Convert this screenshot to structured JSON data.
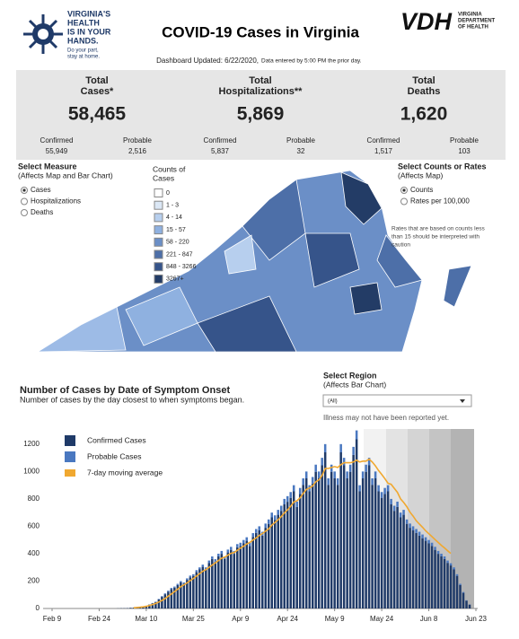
{
  "header": {
    "logo_lines": [
      "VIRGINIA'S",
      "HEALTH",
      "IS IN YOUR",
      "HANDS."
    ],
    "logo_sub": [
      "Do your part,",
      "stay at home."
    ],
    "title": "COVID-19 Cases in Virginia",
    "updated": "Dashboard Updated: 6/22/2020,",
    "updated_note": "Data entered by 5:00 PM the prior day.",
    "vdh": "VDH",
    "vdh_sub": [
      "VIRGINIA",
      "DEPARTMENT",
      "OF HEALTH"
    ]
  },
  "summary": [
    {
      "label": [
        "Total",
        "Cases*"
      ],
      "value": "58,465",
      "breakdown": [
        {
          "label": "Confirmed",
          "value": "55,949"
        },
        {
          "label": "Probable",
          "value": "2,516"
        }
      ]
    },
    {
      "label": [
        "Total",
        "Hospitalizations**"
      ],
      "value": "5,869",
      "breakdown": [
        {
          "label": "Confirmed",
          "value": "5,837"
        },
        {
          "label": "Probable",
          "value": "32"
        }
      ]
    },
    {
      "label": [
        "Total",
        "Deaths"
      ],
      "value": "1,620",
      "breakdown": [
        {
          "label": "Confirmed",
          "value": "1,517"
        },
        {
          "label": "Probable",
          "value": "103"
        }
      ]
    }
  ],
  "measure": {
    "title": "Select Measure",
    "subtitle": "(Affects Map and Bar Chart)",
    "options": [
      "Cases",
      "Hospitalizations",
      "Deaths"
    ]
  },
  "map_legend": {
    "title": [
      "Counts of",
      "Cases"
    ],
    "items": [
      "0",
      "1 - 3",
      "4 - 14",
      "15 - 57",
      "58 - 220",
      "221 - 847",
      "848 - 3266",
      "3267+"
    ]
  },
  "rates": {
    "title": "Select Counts or Rates",
    "subtitle": "(Affects Map)",
    "options": [
      "Counts",
      "Rates per 100,000"
    ],
    "note": [
      "Rates that are based on counts less",
      "than 15 should be interpreted with",
      "caution"
    ]
  },
  "chart_section": {
    "title": "Number of Cases by Date of Symptom Onset",
    "subtitle": "Number of cases by the day closest to when symptoms began.",
    "region_title": "Select Region",
    "region_subtitle": "(Affects Bar Chart)",
    "region_value": "(All)",
    "note": "Illness may not have been reported yet."
  },
  "chart_data": {
    "type": "bar",
    "categories": [
      "Feb 9",
      null,
      null,
      null,
      null,
      null,
      null,
      null,
      null,
      null,
      null,
      null,
      null,
      null,
      null,
      "Feb 24",
      null,
      null,
      null,
      null,
      null,
      null,
      null,
      null,
      null,
      null,
      null,
      null,
      null,
      null,
      "Mar 10",
      null,
      null,
      null,
      null,
      null,
      null,
      null,
      null,
      null,
      null,
      null,
      null,
      null,
      null,
      "Mar 25",
      null,
      null,
      null,
      null,
      null,
      null,
      null,
      null,
      null,
      null,
      null,
      null,
      null,
      null,
      "Apr 9",
      null,
      null,
      null,
      null,
      null,
      null,
      null,
      null,
      null,
      null,
      null,
      null,
      null,
      null,
      "Apr 24",
      null,
      null,
      null,
      null,
      null,
      null,
      null,
      null,
      null,
      null,
      null,
      null,
      null,
      null,
      "May 9",
      null,
      null,
      null,
      null,
      null,
      null,
      null,
      null,
      null,
      null,
      null,
      null,
      null,
      null,
      "May 24",
      null,
      null,
      null,
      null,
      null,
      null,
      null,
      null,
      null,
      null,
      null,
      null,
      null,
      null,
      "Jun 8",
      null,
      null,
      null,
      null,
      null,
      null,
      null,
      null,
      null,
      null,
      null,
      null,
      null,
      null,
      "Jun 23"
    ],
    "series": [
      {
        "name": "Confirmed Cases",
        "color": "#1f3a68",
        "values": [
          0,
          0,
          0,
          0,
          0,
          0,
          0,
          0,
          0,
          0,
          0,
          0,
          0,
          0,
          0,
          0,
          0,
          0,
          0,
          0,
          0,
          1,
          2,
          2,
          3,
          5,
          6,
          8,
          10,
          12,
          19,
          28,
          38,
          47,
          66,
          85,
          104,
          123,
          142,
          152,
          171,
          190,
          180,
          209,
          228,
          238,
          266,
          285,
          304,
          285,
          333,
          361,
          342,
          380,
          399,
          361,
          409,
          428,
          399,
          447,
          456,
          475,
          494,
          456,
          523,
          551,
          570,
          532,
          589,
          618,
          665,
          646,
          684,
          713,
          760,
          779,
          808,
          855,
          741,
          836,
          903,
          950,
          855,
          912,
          998,
          950,
          1045,
          1140,
          903,
          998,
          950,
          903,
          1140,
          1045,
          950,
          998,
          1121,
          1235,
          855,
          950,
          998,
          1045,
          903,
          950,
          855,
          808,
          836,
          855,
          760,
          713,
          741,
          665,
          684,
          618,
          589,
          570,
          551,
          532,
          513,
          494,
          475,
          456,
          428,
          399,
          380,
          361,
          333,
          314,
          285,
          238,
          171,
          114,
          57,
          28,
          0,
          0
        ]
      },
      {
        "name": "Probable Cases",
        "color": "#4a78c0",
        "values": [
          0,
          0,
          0,
          0,
          0,
          0,
          0,
          0,
          0,
          0,
          0,
          0,
          0,
          0,
          0,
          0,
          0,
          0,
          0,
          0,
          0,
          0,
          0,
          0,
          0,
          0,
          0,
          0,
          0,
          0,
          1,
          2,
          2,
          3,
          4,
          5,
          6,
          7,
          8,
          8,
          9,
          10,
          10,
          11,
          12,
          12,
          14,
          15,
          16,
          15,
          17,
          19,
          18,
          20,
          21,
          19,
          21,
          22,
          21,
          23,
          24,
          25,
          26,
          24,
          27,
          29,
          30,
          28,
          31,
          32,
          35,
          34,
          36,
          37,
          40,
          41,
          42,
          45,
          39,
          44,
          47,
          50,
          45,
          48,
          52,
          50,
          55,
          60,
          47,
          52,
          50,
          47,
          60,
          55,
          50,
          52,
          59,
          65,
          45,
          50,
          52,
          55,
          47,
          50,
          45,
          42,
          44,
          45,
          40,
          37,
          39,
          35,
          36,
          32,
          31,
          30,
          29,
          28,
          27,
          26,
          25,
          24,
          22,
          21,
          20,
          19,
          17,
          16,
          15,
          12,
          9,
          6,
          3,
          2,
          0,
          0
        ]
      },
      {
        "name": "7-day moving average",
        "color": "#f0a830",
        "type": "line",
        "values": [
          null,
          null,
          null,
          null,
          null,
          null,
          null,
          null,
          null,
          null,
          null,
          null,
          null,
          null,
          null,
          null,
          null,
          null,
          null,
          null,
          null,
          null,
          null,
          null,
          null,
          null,
          5,
          7,
          9,
          12,
          16,
          22,
          29,
          37,
          47,
          59,
          73,
          90,
          106,
          124,
          141,
          159,
          172,
          187,
          203,
          219,
          236,
          255,
          272,
          284,
          300,
          317,
          333,
          350,
          367,
          375,
          389,
          403,
          408,
          425,
          440,
          455,
          471,
          482,
          500,
          515,
          533,
          547,
          564,
          581,
          608,
          628,
          647,
          670,
          697,
          720,
          746,
          778,
          786,
          808,
          840,
          869,
          880,
          895,
          925,
          939,
          971,
          1023,
          1022,
          1029,
          1036,
          1029,
          1050,
          1064,
          1064,
          1064,
          1069,
          1083,
          1069,
          1076,
          1076,
          1090,
          1069,
          1041,
          1007,
          979,
          948,
          914,
          907,
          877,
          848,
          800,
          774,
          743,
          703,
          674,
          640,
          616,
          593,
          567,
          546,
          525,
          503,
          482,
          461,
          442,
          422,
          402,
          null,
          null,
          null,
          null,
          null,
          null,
          null,
          null
        ]
      }
    ],
    "ylim": [
      0,
      1330
    ],
    "yticks": [
      0,
      200,
      400,
      600,
      800,
      1000,
      1200
    ]
  }
}
